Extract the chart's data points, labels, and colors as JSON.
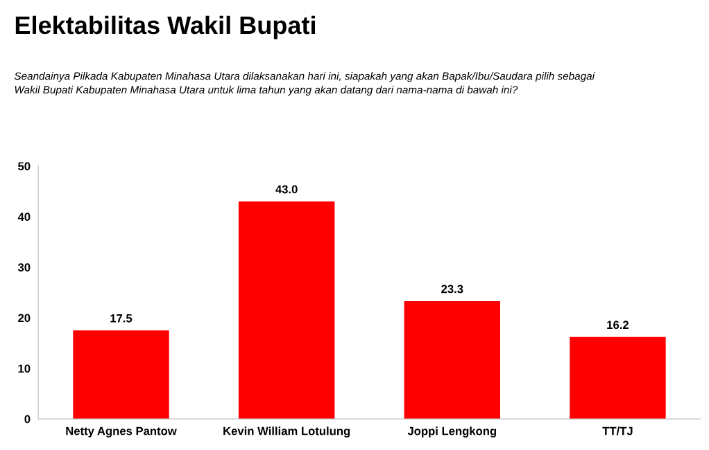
{
  "chart_data": {
    "type": "bar",
    "title": "Elektabilitas Wakil Bupati",
    "subtitle": "Seandainya Pilkada Kabupaten Minahasa Utara dilaksanakan hari ini, siapakah yang akan Bapak/Ibu/Saudara pilih sebagai\nWakil Bupati Kabupaten Minahasa Utara untuk lima tahun yang akan datang dari nama-nama di bawah ini?",
    "categories": [
      "Netty Agnes Pantow",
      "Kevin William Lotulung",
      "Joppi Lengkong",
      "TT/TJ"
    ],
    "values": [
      17.5,
      43.0,
      23.3,
      16.2
    ],
    "value_labels": [
      "17.5",
      "43.0",
      "23.3",
      "16.2"
    ],
    "color": "#ff0000",
    "ylim": [
      0,
      50
    ],
    "yticks": [
      0,
      10,
      20,
      30,
      40,
      50
    ],
    "grid": false
  }
}
